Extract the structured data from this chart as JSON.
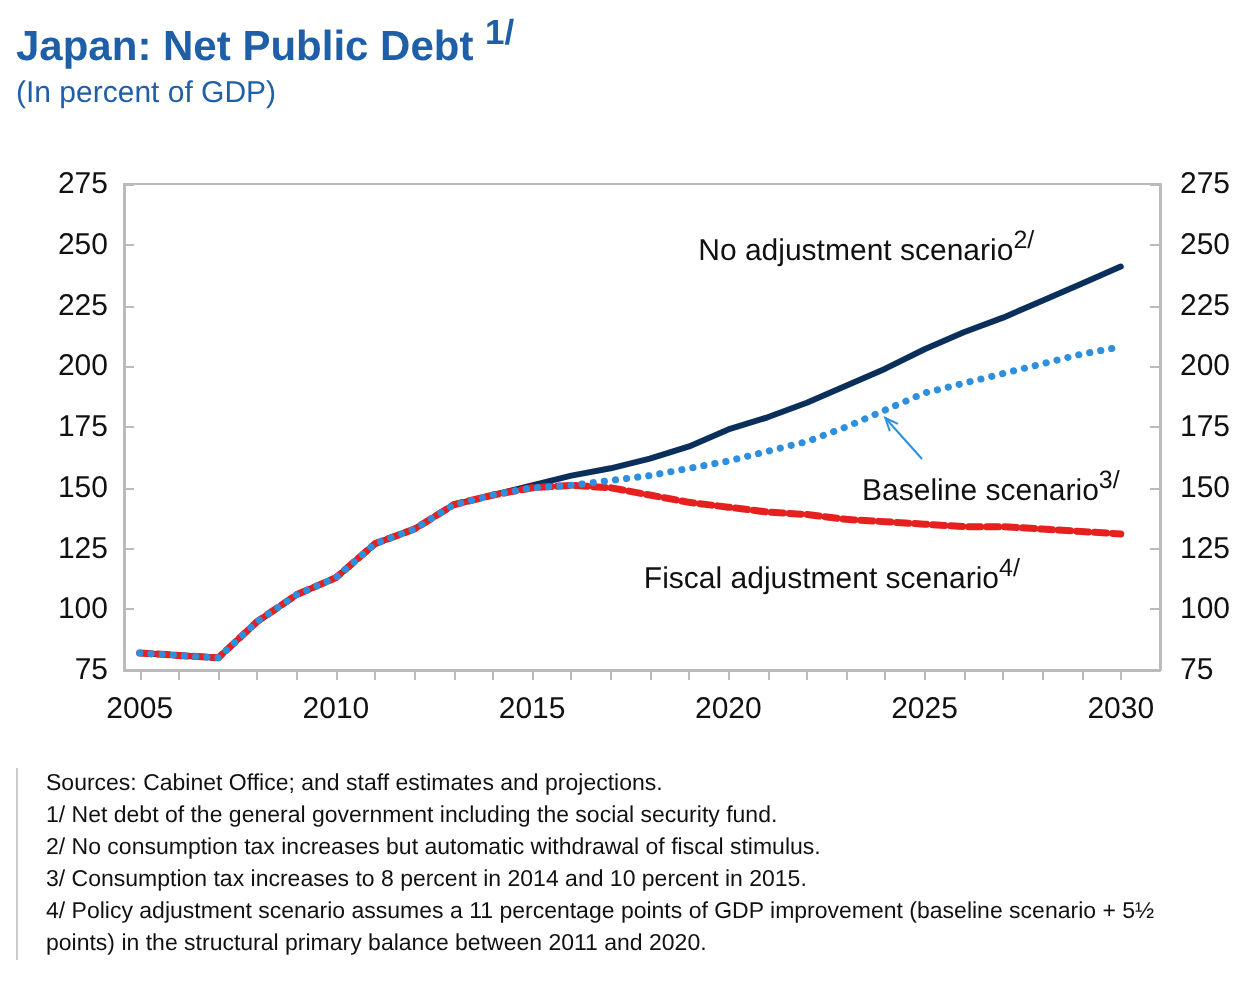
{
  "chart_data": {
    "type": "line",
    "title": "Japan: Net Public Debt $^{1/}$",
    "subtitle": "(In percent of GDP)",
    "x": [
      2005,
      2006,
      2007,
      2008,
      2009,
      2010,
      2011,
      2012,
      2013,
      2014,
      2015,
      2016,
      2017,
      2018,
      2019,
      2020,
      2021,
      2022,
      2023,
      2024,
      2025,
      2026,
      2027,
      2028,
      2029,
      2030
    ],
    "series": [
      {
        "name": "No adjustment scenario$^{2/}$",
        "color": "#0b2f5b",
        "line_style": "solid",
        "values": [
          82,
          81,
          80,
          95,
          106,
          113,
          127,
          133,
          143,
          147,
          151,
          155,
          158,
          162,
          167,
          174,
          179,
          185,
          192,
          199,
          207,
          214,
          220,
          227,
          234,
          241
        ]
      },
      {
        "name": "Baseline scenario$^{3/}$",
        "color": "#2e8fdc",
        "line_style": "dotted",
        "values": [
          82,
          81,
          80,
          95,
          106,
          113,
          127,
          133,
          143,
          147,
          150,
          151,
          153,
          155,
          158,
          161,
          165,
          169,
          175,
          182,
          189,
          193,
          197,
          201,
          205,
          208
        ]
      },
      {
        "name": "Fiscal adjustment scenario$^{4/}$",
        "color": "#e5201f",
        "line_style": "dashed",
        "values": [
          82,
          81,
          80,
          95,
          106,
          113,
          127,
          133,
          143,
          147,
          150,
          151,
          150,
          147,
          144,
          142,
          140,
          139,
          137,
          136,
          135,
          134,
          134,
          133,
          132,
          131
        ]
      }
    ],
    "xlim": [
      2004.6,
      2031
    ],
    "xticks": [
      2005,
      {
        "value": 2006,
        "label": null
      },
      {
        "value": 2007,
        "label": null
      },
      {
        "value": 2008,
        "label": null
      },
      {
        "value": 2009,
        "label": null
      },
      2010,
      {
        "value": 2011,
        "label": null
      },
      {
        "value": 2012,
        "label": null
      },
      {
        "value": 2013,
        "label": null
      },
      {
        "value": 2014,
        "label": null
      },
      2015,
      {
        "value": 2016,
        "label": null
      },
      {
        "value": 2017,
        "label": null
      },
      {
        "value": 2018,
        "label": null
      },
      {
        "value": 2019,
        "label": null
      },
      2020,
      {
        "value": 2021,
        "label": null
      },
      {
        "value": 2022,
        "label": null
      },
      {
        "value": 2023,
        "label": null
      },
      {
        "value": 2024,
        "label": null
      },
      2025,
      {
        "value": 2026,
        "label": null
      },
      {
        "value": 2027,
        "label": null
      },
      {
        "value": 2028,
        "label": null
      },
      {
        "value": 2029,
        "label": null
      },
      2030
    ],
    "ylim": [
      75,
      275
    ],
    "yticks": [
      75,
      100,
      125,
      150,
      175,
      200,
      225,
      250,
      275
    ],
    "y2lim": [
      75,
      275
    ],
    "y2ticks": [
      75,
      100,
      125,
      150,
      175,
      200,
      225,
      250,
      275
    ],
    "marker": "none",
    "annotations": [
      "Sources: Cabinet Office; and staff estimates and projections.",
      "1/ Net debt of the general government including the social security fund.",
      "2/ No consumption tax increases but automatic withdrawal of fiscal stimulus.",
      "3/ Consumption tax increases to 8 percent in 2014 and 10 percent in 2015.",
      "4/ Policy adjustment scenario assumes a 11 percentage points of GDP improvement (baseline scenario + 5½ points) in the structural primary balance between 2011 and 2020."
    ]
  }
}
